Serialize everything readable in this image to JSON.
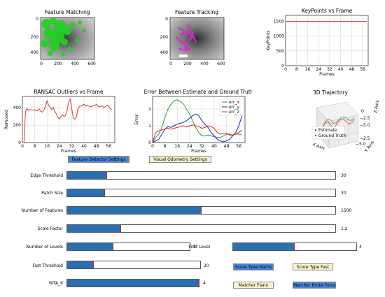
{
  "plots": {
    "feature_matching": {
      "title": "Feature Matching",
      "xticks": [
        "0",
        "200",
        "400",
        "600"
      ],
      "yticks": [
        "0",
        "200",
        "400"
      ],
      "highlight_color": "#21d321"
    },
    "feature_tracking": {
      "title": "Feature Tracking",
      "xticks": [
        "0",
        "200",
        "400",
        "600"
      ],
      "yticks": [
        "0",
        "200",
        "400"
      ],
      "highlight_color": "#e020d8"
    },
    "3d_trajectory": {
      "title": "3D Trajectory",
      "legend": [
        "Estimate",
        "Ground Truth"
      ],
      "z_label": "Z Axis",
      "x_label": "X Axis",
      "y_label": "Y Axis",
      "z_ticks": [
        "0",
        "−2.5",
        "−5.0"
      ],
      "y_ticks": [
        "−2.5",
        "−5.0"
      ]
    }
  },
  "chart_data": [
    {
      "type": "line",
      "title": "KeyPoints vs Frame",
      "xlabel": "Frames",
      "ylabel": "KeyPoints",
      "xticks": [
        0,
        8,
        16,
        24,
        32,
        40,
        48,
        56
      ],
      "yticks": [
        0,
        500,
        1000,
        1500
      ],
      "xlim": [
        0,
        60
      ],
      "ylim": [
        0,
        1700
      ],
      "grid": true,
      "series": [
        {
          "color": "#e03030",
          "x": [
            0,
            59
          ],
          "y": [
            1500,
            1500
          ]
        }
      ]
    },
    {
      "type": "line",
      "title": "RANSAC Outliers vs Frame",
      "xlabel": "Frames",
      "ylabel": "Removed",
      "xticks": [
        0,
        8,
        16,
        24,
        32,
        40,
        48,
        56
      ],
      "yticks": [
        0,
        200,
        400
      ],
      "xlim": [
        0,
        60
      ],
      "ylim": [
        0,
        530
      ],
      "grid": true,
      "series": [
        {
          "color": "#e03030",
          "x": [
            0,
            1,
            2,
            3,
            4,
            5,
            6,
            7,
            8,
            9,
            10,
            11,
            12,
            13,
            14,
            15,
            16,
            17,
            18,
            19,
            20,
            21,
            22,
            23,
            24,
            25,
            26,
            27,
            28,
            29,
            30,
            31,
            32,
            33,
            34,
            35,
            36,
            37,
            38,
            39,
            40,
            41,
            42,
            43,
            44,
            45,
            46,
            47,
            48,
            49,
            50,
            51,
            52,
            53,
            54,
            55,
            56,
            57,
            58
          ],
          "y": [
            0,
            0,
            360,
            390,
            370,
            380,
            375,
            370,
            380,
            365,
            370,
            385,
            360,
            350,
            375,
            420,
            480,
            430,
            400,
            380,
            405,
            360,
            330,
            290,
            270,
            300,
            320,
            300,
            310,
            370,
            460,
            500,
            395,
            285,
            270,
            290,
            380,
            415,
            420,
            430,
            440,
            420,
            430,
            420,
            410,
            415,
            420,
            425,
            440,
            420,
            410,
            420,
            420,
            400,
            415,
            430,
            420,
            390,
            380
          ]
        }
      ]
    },
    {
      "type": "line",
      "title": "Error Between Estimate and Ground Truth",
      "xlabel": "Frames",
      "ylabel": "Error",
      "xticks": [
        0,
        8,
        16,
        24,
        32,
        40,
        48,
        56
      ],
      "yticks": [
        0,
        1,
        2
      ],
      "xlim": [
        0,
        60
      ],
      "ylim": [
        0,
        2.75
      ],
      "grid": true,
      "legend": "top-right",
      "series": [
        {
          "name": "err_x",
          "color": "#2a9a2a",
          "x": [
            0,
            2,
            4,
            6,
            8,
            10,
            12,
            14,
            16,
            18,
            20,
            22,
            24,
            26,
            28,
            30,
            32,
            34,
            36,
            38,
            40,
            42,
            44,
            46,
            48,
            50,
            52,
            54,
            56,
            58
          ],
          "y": [
            0,
            0.3,
            0.5,
            0.9,
            1.5,
            2.0,
            2.3,
            2.5,
            2.55,
            2.45,
            2.3,
            2.0,
            1.7,
            1.3,
            0.9,
            0.6,
            0.4,
            0.4,
            0.45,
            0.4,
            0.35,
            0.3,
            0.3,
            0.4,
            0.5,
            0.5,
            0.45,
            0.5,
            0.5,
            0.45
          ]
        },
        {
          "name": "err_y",
          "color": "#2020c8",
          "x": [
            0,
            2,
            4,
            6,
            8,
            10,
            12,
            14,
            16,
            18,
            20,
            22,
            24,
            26,
            28,
            30,
            32,
            34,
            36,
            38,
            40,
            42,
            44,
            46,
            48,
            50,
            52,
            54,
            56,
            58
          ],
          "y": [
            0,
            0.1,
            0.2,
            0.5,
            0.8,
            0.95,
            0.9,
            1.0,
            1.1,
            1.15,
            1.2,
            1.3,
            1.45,
            1.6,
            1.7,
            1.6,
            1.3,
            1.1,
            0.9,
            0.6,
            0.4,
            0.2,
            0.1,
            0.05,
            0.1,
            0.2,
            0.4,
            0.6,
            1.0,
            1.6
          ]
        },
        {
          "name": "err_z",
          "color": "#e02020",
          "x": [
            0,
            2,
            4,
            6,
            8,
            10,
            12,
            14,
            16,
            18,
            20,
            22,
            24,
            26,
            28,
            30,
            32,
            34,
            36,
            38,
            40,
            42,
            44,
            46,
            48,
            50,
            52,
            54,
            56,
            58
          ],
          "y": [
            0,
            0.6,
            0.7,
            0.75,
            0.8,
            0.85,
            0.8,
            0.85,
            0.9,
            0.95,
            1.0,
            0.95,
            1.0,
            1.05,
            1.0,
            0.95,
            0.85,
            0.9,
            1.0,
            0.95,
            0.85,
            0.6,
            0.5,
            0.55,
            0.55,
            0.45,
            0.45,
            0.5,
            0.6,
            0.75
          ]
        }
      ]
    }
  ],
  "buttons": {
    "feature_detector_settings": "Feature Detector Settings",
    "visual_odometry_settings": "Visual Odometry Settings",
    "score_type_harris": "Score Type Harris",
    "score_type_fast": "Score Type Fast",
    "matcher_flann": "Matcher Flann",
    "matcher_brute_force": "Matcher Brute Force"
  },
  "sliders": [
    {
      "label": "Edge Threshold",
      "value": "30",
      "fraction": 0.148
    },
    {
      "label": "Patch Size",
      "value": "30",
      "fraction": 0.142
    },
    {
      "label": "Number of Features",
      "value": "1500",
      "fraction": 0.5
    },
    {
      "label": "Scale Factor",
      "value": "1.2",
      "fraction": 0.2
    },
    {
      "label": "Number of Levels",
      "value": "8",
      "fraction": 0.375
    },
    {
      "label": "Fast Threshold",
      "value": "20",
      "fraction": 0.2
    },
    {
      "label": "WTA_K",
      "value": "4",
      "fraction": 1.0
    },
    {
      "label": "First Level",
      "value": "4",
      "fraction": 0.5
    }
  ],
  "colors": {
    "slider_fill": "#2b6fb3",
    "slider_marker": "#c62828",
    "button_blue": "#4a86d8",
    "button_cream": "#f8f3cc"
  }
}
